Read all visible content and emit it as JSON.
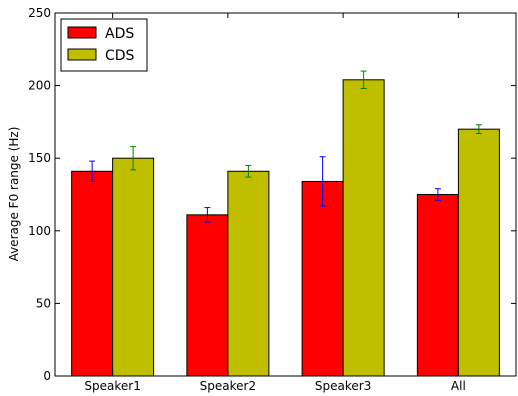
{
  "chart_data": {
    "type": "bar",
    "ylabel": "Average F0 range (Hz)",
    "xlabel": "",
    "ylim": [
      0,
      250
    ],
    "yticks": [
      0,
      50,
      100,
      150,
      200,
      250
    ],
    "categories": [
      "Speaker1",
      "Speaker2",
      "Speaker3",
      "All"
    ],
    "series": [
      {
        "name": "ADS",
        "color": "#ff0000",
        "error_color": "#0000ff",
        "values": [
          141,
          111,
          134,
          125
        ],
        "errors": [
          7,
          5,
          17,
          4
        ]
      },
      {
        "name": "CDS",
        "color": "#bfbf00",
        "error_color": "#008000",
        "values": [
          150,
          141,
          204,
          170
        ],
        "errors": [
          8,
          4,
          6,
          3
        ]
      }
    ],
    "grid": false,
    "legend_position": "top-left"
  }
}
